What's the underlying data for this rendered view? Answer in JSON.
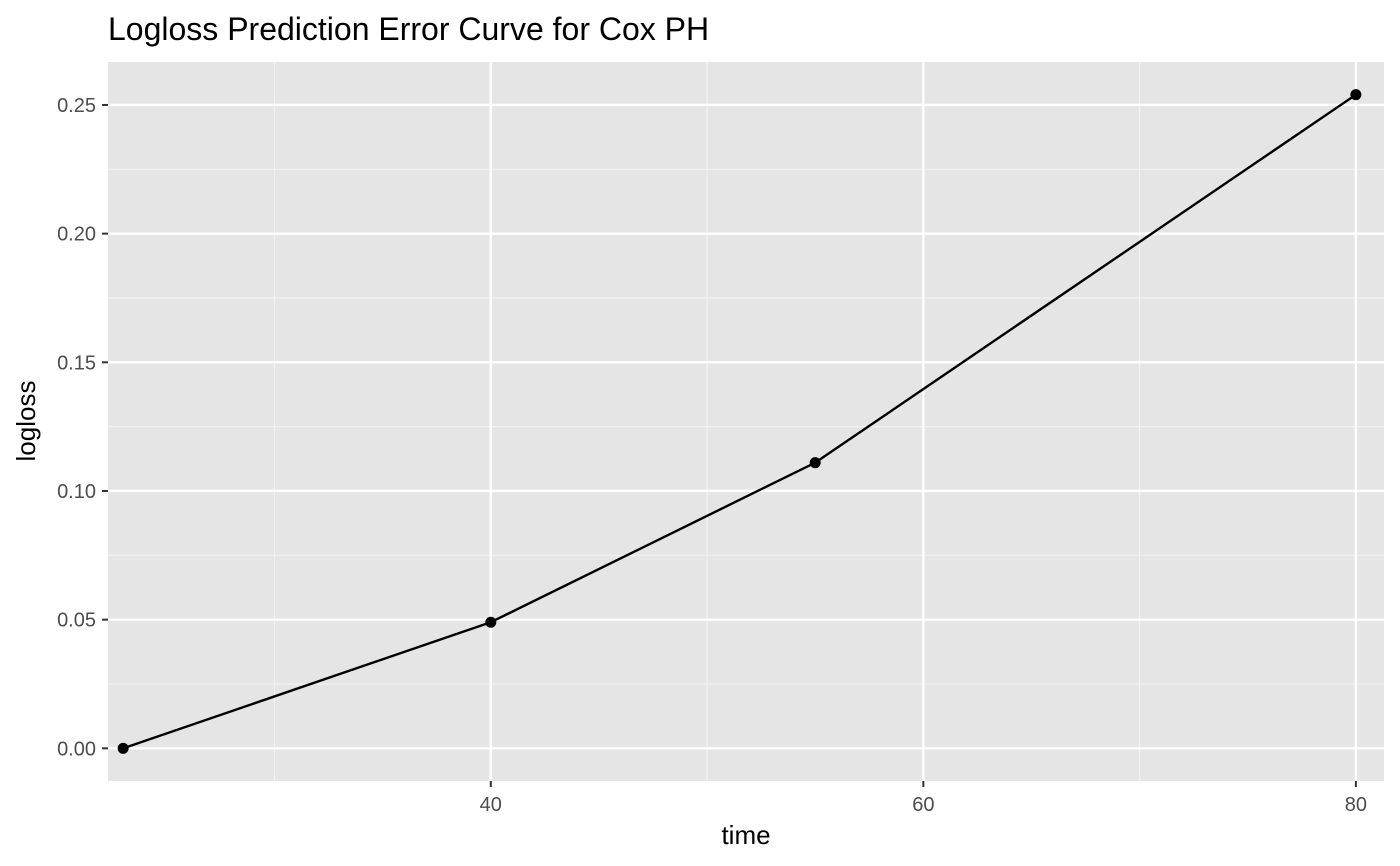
{
  "chart_data": {
    "type": "line",
    "title": "Logloss Prediction Error Curve for Cox PH",
    "xlabel": "time",
    "ylabel": "logloss",
    "x": [
      23,
      40,
      55,
      80
    ],
    "series": [
      {
        "values": [
          0.0,
          0.049,
          0.111,
          0.254
        ]
      }
    ],
    "xlim": [
      22.3,
      81.3
    ],
    "ylim": [
      -0.0127,
      0.2667
    ],
    "x_ticks": [
      40,
      60,
      80
    ],
    "x_tick_labels": [
      "40",
      "60",
      "80"
    ],
    "y_ticks": [
      0.0,
      0.05,
      0.1,
      0.15,
      0.2,
      0.25
    ],
    "y_tick_labels": [
      "0.00",
      "0.05",
      "0.10",
      "0.15",
      "0.20",
      "0.25"
    ],
    "grid": true,
    "legend": "none",
    "colors": {
      "panel_background": "#e5e5e5",
      "grid_major": "#ffffff",
      "grid_minor": "#f2f2f2",
      "line": "#000000",
      "point": "#000000",
      "tick_text": "#4d4d4d",
      "tick_mark": "#333333"
    }
  }
}
